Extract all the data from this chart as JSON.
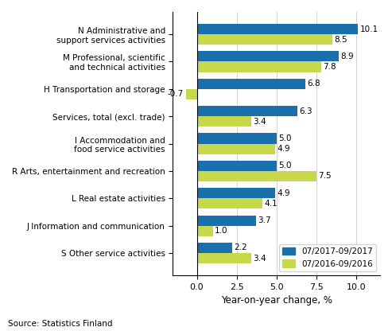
{
  "categories": [
    "N Administrative and\nsupport services activities",
    "M Professional, scientific\nand technical activities",
    "H Transportation and storage",
    "Services, total (excl. trade)",
    "I Accommodation and\nfood service activities",
    "R Arts, entertainment and recreation",
    "L Real estate activities",
    "J Information and communication",
    "S Other service activities"
  ],
  "values_2017": [
    10.1,
    8.9,
    6.8,
    6.3,
    5.0,
    5.0,
    4.9,
    3.7,
    2.2
  ],
  "values_2016": [
    8.5,
    7.8,
    -0.7,
    3.4,
    4.9,
    7.5,
    4.1,
    1.0,
    3.4
  ],
  "color_2017": "#1a6fad",
  "color_2016": "#c8d84b",
  "xlabel": "Year-on-year change, %",
  "legend_2017": "07/2017-09/2017",
  "legend_2016": "07/2016-09/2016",
  "source": "Source: Statistics Finland",
  "xlim": [
    -1.5,
    11.5
  ],
  "xticks": [
    0.0,
    2.5,
    5.0,
    7.5,
    10.0
  ],
  "bar_height": 0.38,
  "figsize": [
    4.93,
    4.16
  ],
  "dpi": 100
}
